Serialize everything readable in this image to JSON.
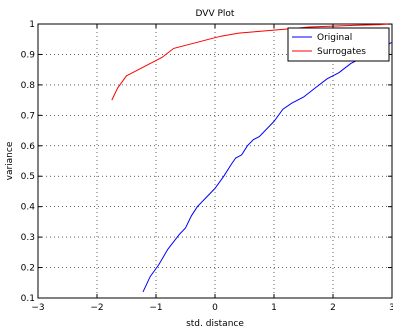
{
  "chart_data": {
    "type": "line",
    "title": "DVV Plot",
    "xlabel": "std. distance",
    "ylabel": "variance",
    "xlim": [
      -3,
      3
    ],
    "ylim": [
      0.1,
      1
    ],
    "xticks": [
      "−3",
      "−2",
      "−1",
      "0",
      "1",
      "2",
      "3"
    ],
    "yticks": [
      "0.1",
      "0.2",
      "0.3",
      "0.4",
      "0.5",
      "0.6",
      "0.7",
      "0.8",
      "0.9",
      "1"
    ],
    "grid": true,
    "legend_position": "top-right",
    "series": [
      {
        "name": "Original",
        "color": "#0000ff",
        "points": [
          [
            -1.22,
            0.12
          ],
          [
            -1.1,
            0.17
          ],
          [
            -0.95,
            0.21
          ],
          [
            -0.8,
            0.26
          ],
          [
            -0.6,
            0.31
          ],
          [
            -0.5,
            0.33
          ],
          [
            -0.4,
            0.37
          ],
          [
            -0.3,
            0.4
          ],
          [
            -0.15,
            0.43
          ],
          [
            0.0,
            0.46
          ],
          [
            0.15,
            0.5
          ],
          [
            0.28,
            0.54
          ],
          [
            0.35,
            0.56
          ],
          [
            0.45,
            0.57
          ],
          [
            0.55,
            0.6
          ],
          [
            0.65,
            0.62
          ],
          [
            0.75,
            0.63
          ],
          [
            0.85,
            0.65
          ],
          [
            1.0,
            0.68
          ],
          [
            1.15,
            0.72
          ],
          [
            1.3,
            0.74
          ],
          [
            1.5,
            0.76
          ],
          [
            1.7,
            0.79
          ],
          [
            1.9,
            0.82
          ],
          [
            2.1,
            0.84
          ],
          [
            2.3,
            0.87
          ],
          [
            2.5,
            0.89
          ],
          [
            2.7,
            0.91
          ],
          [
            2.9,
            0.93
          ],
          [
            3.0,
            0.94
          ]
        ]
      },
      {
        "name": "Surrogates",
        "color": "#ff0000",
        "points": [
          [
            -1.75,
            0.75
          ],
          [
            -1.65,
            0.79
          ],
          [
            -1.5,
            0.83
          ],
          [
            -1.3,
            0.85
          ],
          [
            -1.1,
            0.87
          ],
          [
            -0.9,
            0.89
          ],
          [
            -0.7,
            0.92
          ],
          [
            -0.5,
            0.93
          ],
          [
            -0.3,
            0.94
          ],
          [
            -0.1,
            0.95
          ],
          [
            0.1,
            0.96
          ],
          [
            0.4,
            0.97
          ],
          [
            0.7,
            0.975
          ],
          [
            1.0,
            0.98
          ],
          [
            1.3,
            0.985
          ],
          [
            1.6,
            0.99
          ],
          [
            2.0,
            0.993
          ],
          [
            2.4,
            0.996
          ],
          [
            2.8,
            0.998
          ],
          [
            3.0,
            1.0
          ]
        ]
      }
    ]
  }
}
